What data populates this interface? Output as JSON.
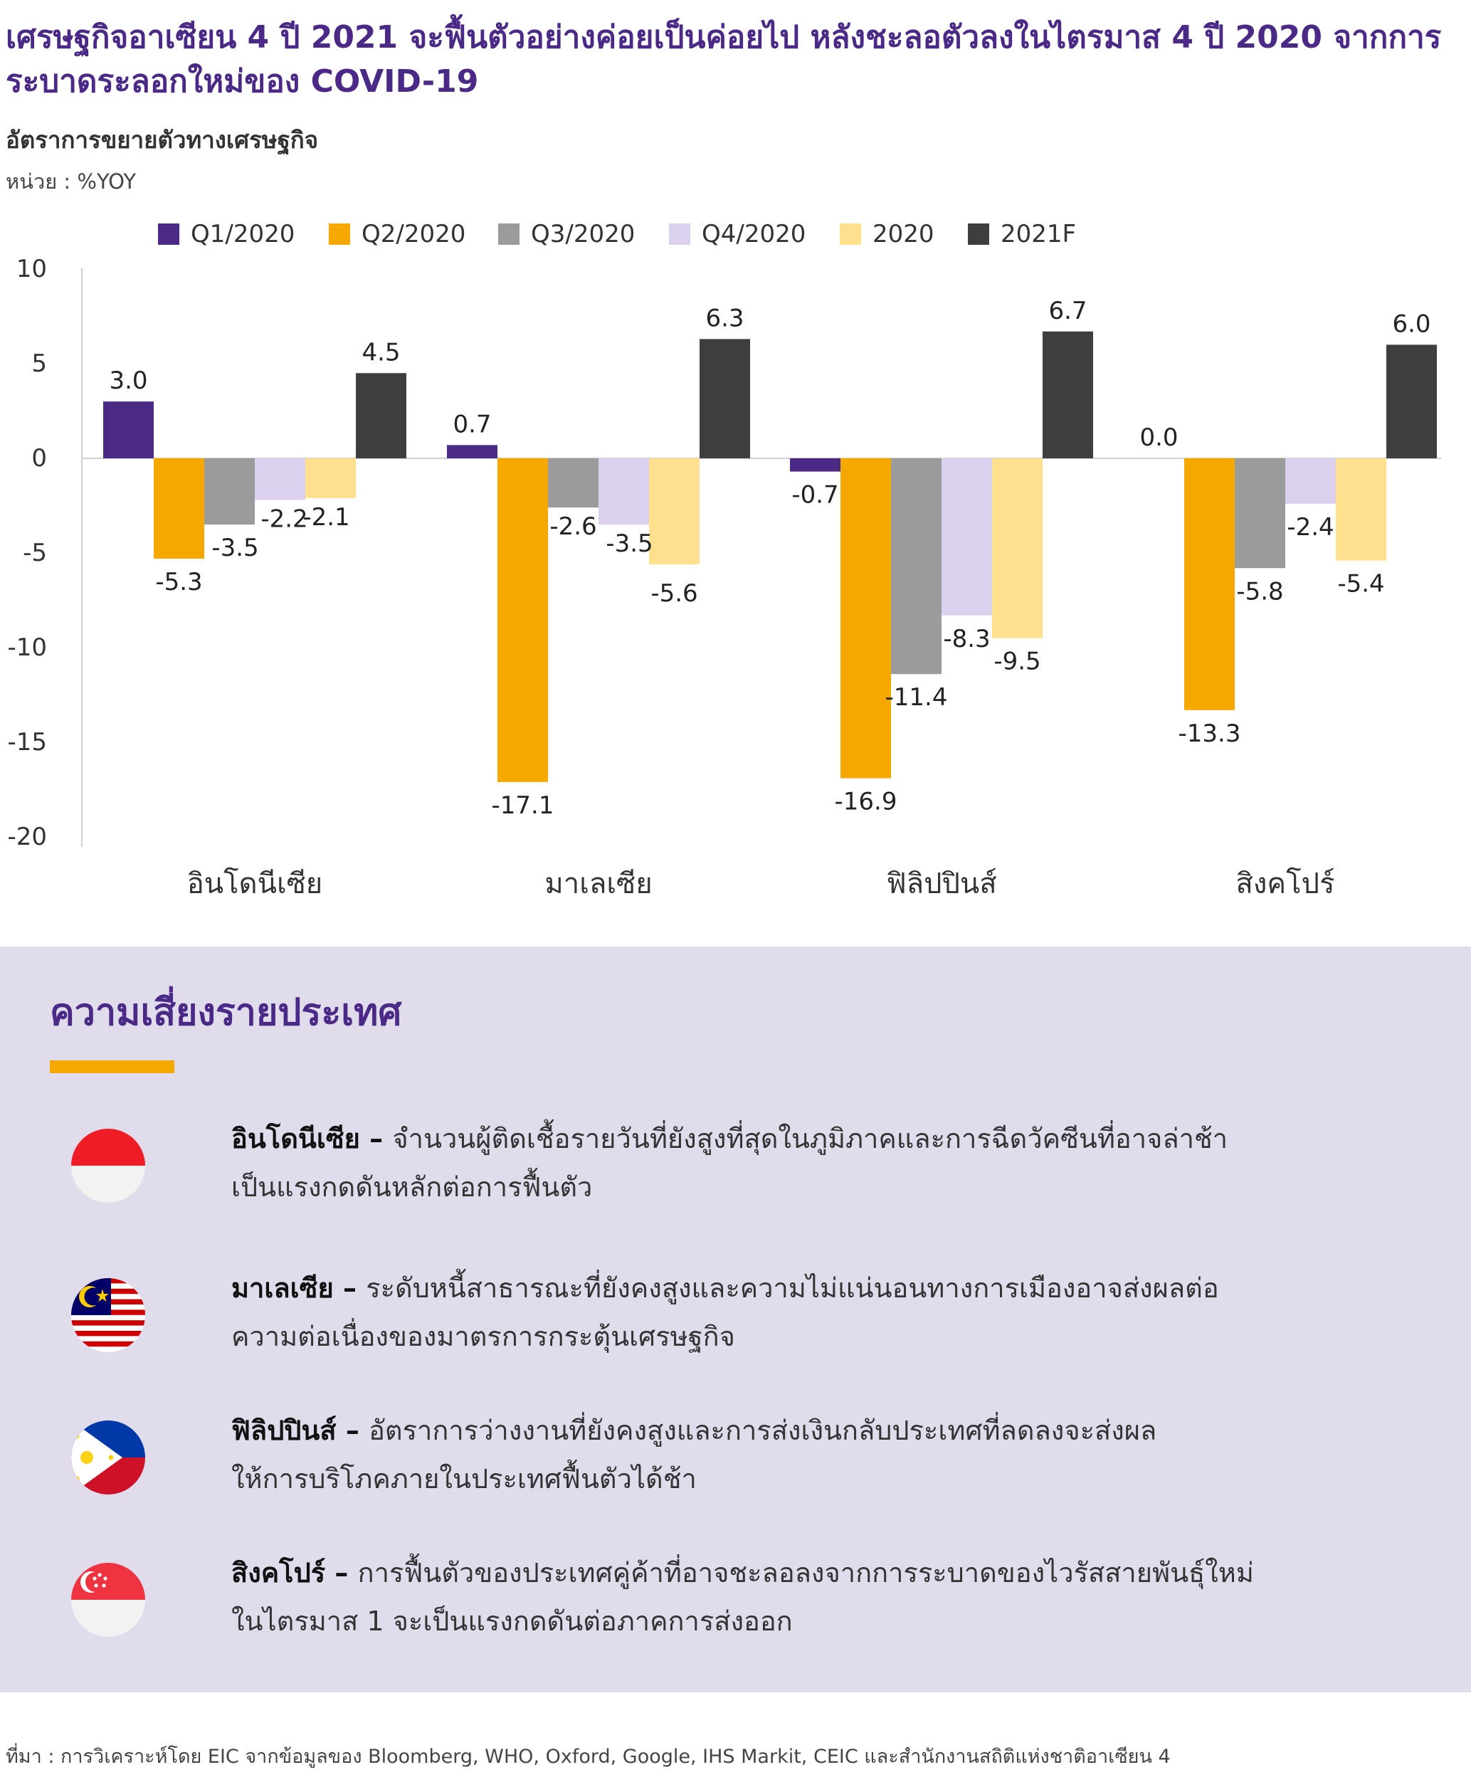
{
  "title": "เศรษฐกิจอาเซียน 4 ปี 2021 จะฟื้นตัวอย่างค่อยเป็นค่อยไป หลังชะลอตัวลงในไตรมาส 4 ปี 2020 จากการระบาดระลอกใหม่ของ COVID-19",
  "subtitle": "อัตราการขยายตัวทางเศรษฐกิจ",
  "unit": "หน่วย : %YOY",
  "chart_data": {
    "type": "bar",
    "categories": [
      "อินโดนีเซีย",
      "มาเลเซีย",
      "ฟิลิปปินส์",
      "สิงคโปร์"
    ],
    "series": [
      {
        "name": "Q1/2020",
        "color": "#4b2a86",
        "values": [
          3.0,
          0.7,
          -0.7,
          0.0
        ]
      },
      {
        "name": "Q2/2020",
        "color": "#f5a800",
        "values": [
          -5.3,
          -17.1,
          -16.9,
          -13.3
        ]
      },
      {
        "name": "Q3/2020",
        "color": "#9b9b9b",
        "values": [
          -3.5,
          -2.6,
          -11.4,
          -5.8
        ]
      },
      {
        "name": "Q4/2020",
        "color": "#dcd0ef",
        "values": [
          -2.2,
          -3.5,
          -8.3,
          -2.4
        ]
      },
      {
        "name": "2020",
        "color": "#ffe08e",
        "values": [
          -2.1,
          -5.6,
          -9.5,
          -5.4
        ]
      },
      {
        "name": "2021F",
        "color": "#3e3e40",
        "values": [
          4.5,
          6.3,
          6.7,
          6.0
        ]
      }
    ],
    "yticks": [
      10,
      5,
      0,
      -5,
      -10,
      -15,
      -20
    ],
    "ylim": [
      -20,
      10
    ],
    "grid": false,
    "legend": "top"
  },
  "risks": {
    "title": "ความเสี่ยงรายประเทศ",
    "items": [
      {
        "country": "อินโดนีเซีย",
        "flag": "indonesia-flag",
        "line1": "จำนวนผู้ติดเชื้อรายวันที่ยังสูงที่สุดในภูมิภาคและการฉีดวัคซีนที่อาจล่าช้า",
        "line2": "เป็นแรงกดดันหลักต่อการฟื้นตัว"
      },
      {
        "country": "มาเลเซีย",
        "flag": "malaysia-flag",
        "line1": "ระดับหนี้สาธารณะที่ยังคงสูงและความไม่แน่นอนทางการเมืองอาจส่งผลต่อ",
        "line2": "ความต่อเนื่องของมาตรการกระตุ้นเศรษฐกิจ"
      },
      {
        "country": "ฟิลิปปินส์",
        "flag": "philippines-flag",
        "line1": "อัตราการว่างงานที่ยังคงสูงและการส่งเงินกลับประเทศที่ลดลงจะส่งผล",
        "line2": "ให้การบริโภคภายในประเทศฟื้นตัวได้ช้า"
      },
      {
        "country": "สิงคโปร์",
        "flag": "singapore-flag",
        "line1": "การฟื้นตัวของประเทศคู่ค้าที่อาจชะลอลงจากการระบาดของไวรัสสายพันธุ์ใหม่",
        "line2": "ในไตรมาส 1 จะเป็นแรงกดดันต่อภาคการส่งออก"
      }
    ]
  },
  "source": "ที่มา : การวิเคราะห์โดย EIC จากข้อมูลของ Bloomberg, WHO, Oxford, Google, IHS Markit, CEIC และสำนักงานสถิติแห่งชาติอาเซียน 4"
}
